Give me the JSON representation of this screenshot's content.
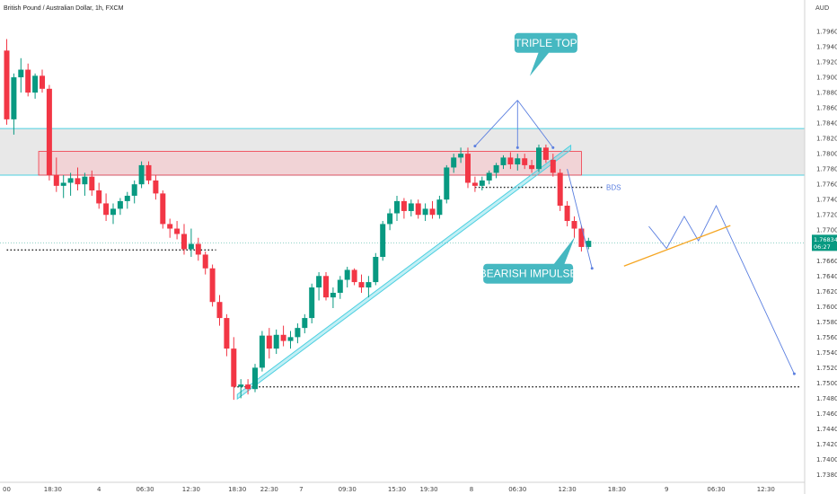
{
  "colors": {
    "up": "#089981",
    "down": "#f23645",
    "channel": "#4dd0e1",
    "zone_fill": "#e0e0e0",
    "zone_edge": "#4dd0e1",
    "red_zone_fill": "#f7c1c7",
    "red_zone_edge": "#f23645",
    "callout": "#46b8c1",
    "arrow": "#5b7fe0",
    "orange": "#f5a623",
    "dotted": "#222222"
  },
  "chart_data": {
    "type": "candlestick",
    "title": "British Pound / Australian Dollar, 1h, FXCM",
    "currency_label": "AUD",
    "y_ticks": [
      "1.79600",
      "1.79400",
      "1.79200",
      "1.79000",
      "1.78800",
      "1.78600",
      "1.78400",
      "1.78200",
      "1.78000",
      "1.77800",
      "1.77600",
      "1.77400",
      "1.77200",
      "1.77000",
      "1.76800",
      "1.76600",
      "1.76400",
      "1.76200",
      "1.76000",
      "1.75800",
      "1.75600",
      "1.75400",
      "1.75200",
      "1.75000",
      "1.74800",
      "1.74600",
      "1.74400",
      "1.74200",
      "1.74000",
      "1.73800"
    ],
    "ylim": [
      1.737,
      1.798
    ],
    "x_ticks": [
      {
        "label": "00",
        "x": 0
      },
      {
        "label": "18:30",
        "x": 6.5
      },
      {
        "label": "4",
        "x": 13
      },
      {
        "label": "06:30",
        "x": 19.5
      },
      {
        "label": "12:30",
        "x": 26
      },
      {
        "label": "18:30",
        "x": 32.5
      },
      {
        "label": "22:30",
        "x": 37
      },
      {
        "label": "7",
        "x": 41.5
      },
      {
        "label": "09:30",
        "x": 48
      },
      {
        "label": "15:30",
        "x": 55
      },
      {
        "label": "19:30",
        "x": 59.5
      },
      {
        "label": "8",
        "x": 65.5
      },
      {
        "label": "06:30",
        "x": 72
      },
      {
        "label": "12:30",
        "x": 79
      },
      {
        "label": "18:30",
        "x": 86
      },
      {
        "label": "9",
        "x": 93
      },
      {
        "label": "06:30",
        "x": 100
      },
      {
        "label": "12:30",
        "x": 107
      }
    ],
    "ohlc": [
      [
        1.7935,
        1.795,
        1.7838,
        1.7845
      ],
      [
        1.7845,
        1.7905,
        1.7825,
        1.79
      ],
      [
        1.79,
        1.7925,
        1.788,
        1.791
      ],
      [
        1.791,
        1.7918,
        1.7875,
        1.788
      ],
      [
        1.788,
        1.7905,
        1.7872,
        1.7902
      ],
      [
        1.7902,
        1.791,
        1.788,
        1.7885
      ],
      [
        1.7885,
        1.789,
        1.7765,
        1.7772
      ],
      [
        1.7772,
        1.7795,
        1.775,
        1.7758
      ],
      [
        1.7758,
        1.7772,
        1.7742,
        1.7762
      ],
      [
        1.7762,
        1.7775,
        1.7745,
        1.7768
      ],
      [
        1.7768,
        1.7782,
        1.7752,
        1.776
      ],
      [
        1.776,
        1.7775,
        1.7745,
        1.777
      ],
      [
        1.777,
        1.7778,
        1.7745,
        1.7752
      ],
      [
        1.7752,
        1.7762,
        1.7728,
        1.7735
      ],
      [
        1.7735,
        1.7748,
        1.7712,
        1.772
      ],
      [
        1.772,
        1.7735,
        1.7708,
        1.7728
      ],
      [
        1.7728,
        1.7742,
        1.772,
        1.7738
      ],
      [
        1.7738,
        1.775,
        1.7728,
        1.7745
      ],
      [
        1.7745,
        1.7765,
        1.7735,
        1.776
      ],
      [
        1.776,
        1.779,
        1.7755,
        1.7785
      ],
      [
        1.7785,
        1.779,
        1.776,
        1.7765
      ],
      [
        1.7765,
        1.7772,
        1.774,
        1.7748
      ],
      [
        1.7748,
        1.7752,
        1.7702,
        1.7708
      ],
      [
        1.7708,
        1.7715,
        1.769,
        1.7702
      ],
      [
        1.7702,
        1.7712,
        1.7688,
        1.7695
      ],
      [
        1.7695,
        1.7708,
        1.7668,
        1.7675
      ],
      [
        1.7675,
        1.7702,
        1.7665,
        1.7682
      ],
      [
        1.7682,
        1.769,
        1.766,
        1.7668
      ],
      [
        1.7668,
        1.7672,
        1.7642,
        1.765
      ],
      [
        1.765,
        1.7655,
        1.76,
        1.7606
      ],
      [
        1.7606,
        1.7615,
        1.7575,
        1.7585
      ],
      [
        1.7585,
        1.759,
        1.7535,
        1.7545
      ],
      [
        1.7545,
        1.756,
        1.7478,
        1.7495
      ],
      [
        1.7495,
        1.7505,
        1.748,
        1.7498
      ],
      [
        1.7498,
        1.7505,
        1.7485,
        1.7492
      ],
      [
        1.7492,
        1.7525,
        1.7488,
        1.752
      ],
      [
        1.752,
        1.7568,
        1.7515,
        1.7562
      ],
      [
        1.7562,
        1.7572,
        1.7532,
        1.7545
      ],
      [
        1.7545,
        1.757,
        1.7538,
        1.7563
      ],
      [
        1.7563,
        1.7575,
        1.7548,
        1.7555
      ],
      [
        1.7555,
        1.7568,
        1.7545,
        1.756
      ],
      [
        1.756,
        1.7578,
        1.7552,
        1.7572
      ],
      [
        1.7572,
        1.759,
        1.7565,
        1.7585
      ],
      [
        1.7585,
        1.763,
        1.7578,
        1.7625
      ],
      [
        1.7625,
        1.7645,
        1.7608,
        1.764
      ],
      [
        1.764,
        1.7645,
        1.7608,
        1.7612
      ],
      [
        1.7612,
        1.7625,
        1.7598,
        1.7618
      ],
      [
        1.7618,
        1.764,
        1.761,
        1.7635
      ],
      [
        1.7635,
        1.7652,
        1.7625,
        1.7648
      ],
      [
        1.7648,
        1.765,
        1.7628,
        1.7632
      ],
      [
        1.7632,
        1.7642,
        1.7618,
        1.7625
      ],
      [
        1.7625,
        1.764,
        1.7612,
        1.7632
      ],
      [
        1.7632,
        1.767,
        1.7628,
        1.7665
      ],
      [
        1.7665,
        1.7712,
        1.766,
        1.7708
      ],
      [
        1.7708,
        1.7728,
        1.77,
        1.7722
      ],
      [
        1.7722,
        1.7745,
        1.7712,
        1.7738
      ],
      [
        1.7738,
        1.7742,
        1.7715,
        1.7725
      ],
      [
        1.7725,
        1.774,
        1.7718,
        1.7735
      ],
      [
        1.7735,
        1.774,
        1.7715,
        1.772
      ],
      [
        1.772,
        1.7735,
        1.7712,
        1.7728
      ],
      [
        1.7728,
        1.7738,
        1.7715,
        1.772
      ],
      [
        1.772,
        1.7745,
        1.7715,
        1.774
      ],
      [
        1.774,
        1.7785,
        1.7735,
        1.7782
      ],
      [
        1.7782,
        1.78,
        1.7775,
        1.7795
      ],
      [
        1.7795,
        1.7808,
        1.7788,
        1.78
      ],
      [
        1.78,
        1.7808,
        1.7755,
        1.7762
      ],
      [
        1.7762,
        1.777,
        1.775,
        1.7758
      ],
      [
        1.7758,
        1.777,
        1.7752,
        1.7765
      ],
      [
        1.7765,
        1.7778,
        1.776,
        1.7775
      ],
      [
        1.7775,
        1.7788,
        1.7768,
        1.7785
      ],
      [
        1.7785,
        1.7798,
        1.778,
        1.7795
      ],
      [
        1.7795,
        1.7802,
        1.778,
        1.7786
      ],
      [
        1.7786,
        1.78,
        1.7778,
        1.7794
      ],
      [
        1.7794,
        1.78,
        1.778,
        1.7785
      ],
      [
        1.7785,
        1.7792,
        1.7775,
        1.778
      ],
      [
        1.778,
        1.7812,
        1.7776,
        1.7808
      ],
      [
        1.7808,
        1.7812,
        1.7788,
        1.7792
      ],
      [
        1.7792,
        1.78,
        1.777,
        1.7775
      ],
      [
        1.7775,
        1.778,
        1.7725,
        1.7732
      ],
      [
        1.7732,
        1.7738,
        1.7705,
        1.7712
      ],
      [
        1.7712,
        1.7718,
        1.769,
        1.7702
      ],
      [
        1.7702,
        1.7706,
        1.7672,
        1.7678
      ],
      [
        1.7678,
        1.769,
        1.7675,
        1.7686
      ]
    ],
    "channel_line": [
      [
        32.5,
        1.7485
      ],
      [
        79.5,
        1.7805
      ]
    ],
    "gray_zone": [
      1.7772,
      1.7833
    ],
    "red_zone": {
      "x_start": 4.5,
      "x_end": 81,
      "y_low": 1.7772,
      "y_high": 1.7803
    },
    "dotted_levels": [
      {
        "y": 1.7674,
        "x_start": 0,
        "x_end": 29.5
      },
      {
        "y": 1.7495,
        "x_start": 32,
        "x_end": 112
      },
      {
        "y": 1.7756,
        "x_start": 66,
        "x_end": 84
      }
    ],
    "current_price": 1.76834,
    "current_price_label": "1.76834",
    "countdown_label": "06:27",
    "triple_top_arrows": [
      {
        "from": [
          72,
          1.787
        ],
        "to": [
          66,
          1.781
        ]
      },
      {
        "from": [
          72,
          1.787
        ],
        "to": [
          72,
          1.7808
        ]
      },
      {
        "from": [
          72,
          1.787
        ],
        "to": [
          77,
          1.7808
        ]
      }
    ],
    "bearish_arrow": {
      "from": [
        79,
        1.778
      ],
      "to": [
        82.5,
        1.765
      ]
    },
    "projection_path": [
      [
        90.5,
        1.7705
      ],
      [
        93,
        1.7676
      ],
      [
        95.5,
        1.7718
      ],
      [
        97.5,
        1.7686
      ],
      [
        100,
        1.7732
      ],
      [
        111,
        1.7512
      ]
    ],
    "orange_line": [
      [
        87,
        1.7653
      ],
      [
        102,
        1.7706
      ]
    ],
    "annotations": {
      "triple_top": {
        "text": "TRIPLE TOP",
        "x": 76,
        "y": 1.7945
      },
      "bearish_impulse": {
        "text": "BEARISH IMPULSE",
        "x": 73.5,
        "y": 1.7643
      },
      "bds": {
        "text": "BDS",
        "x": 84.5,
        "y": 1.7756
      }
    }
  }
}
